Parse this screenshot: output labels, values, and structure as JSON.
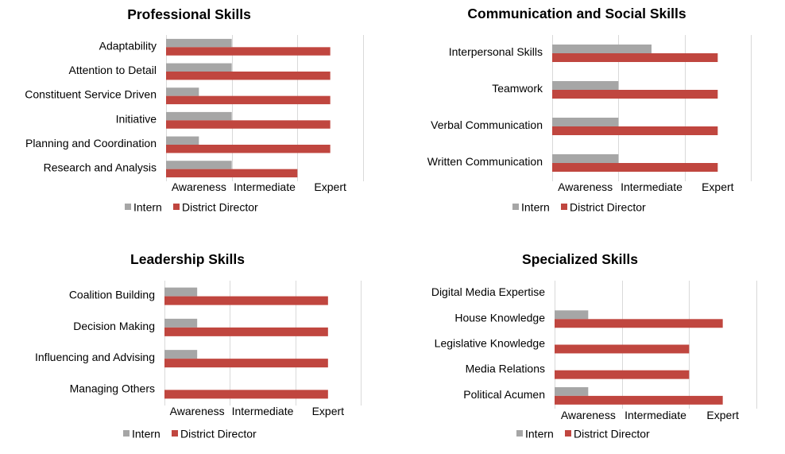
{
  "colors": {
    "intern": "#a6a6a6",
    "director": "#c0463f",
    "grid": "#d9d9d9"
  },
  "chart_data": [
    {
      "type": "bar",
      "orientation": "horizontal",
      "title": "Professional Skills",
      "categories": [
        "Adaptability",
        "Attention to Detail",
        "Constituent Service Driven",
        "Initiative",
        "Planning and Coordination",
        "Research and Analysis"
      ],
      "xticks": [
        "Awareness",
        "Intermediate",
        "Expert"
      ],
      "xlim": [
        0,
        3
      ],
      "grid": true,
      "legend": "bottom",
      "series": [
        {
          "name": "Intern",
          "color": "#a6a6a6",
          "values": [
            1,
            1,
            0.5,
            1,
            0.5,
            1
          ]
        },
        {
          "name": "District Director",
          "color": "#c0463f",
          "values": [
            2.5,
            2.5,
            2.5,
            2.5,
            2.5,
            2
          ]
        }
      ]
    },
    {
      "type": "bar",
      "orientation": "horizontal",
      "title": "Communication and Social Skills",
      "categories": [
        "Interpersonal Skills",
        "Teamwork",
        "Verbal Communication",
        "Written Communication"
      ],
      "xticks": [
        "Awareness",
        "Intermediate",
        "Expert"
      ],
      "xlim": [
        0,
        3
      ],
      "grid": true,
      "legend": "bottom",
      "series": [
        {
          "name": "Intern",
          "color": "#a6a6a6",
          "values": [
            1.5,
            1,
            1,
            1
          ]
        },
        {
          "name": "District Director",
          "color": "#c0463f",
          "values": [
            2.5,
            2.5,
            2.5,
            2.5
          ]
        }
      ]
    },
    {
      "type": "bar",
      "orientation": "horizontal",
      "title": "Leadership Skills",
      "categories": [
        "Coalition Building",
        "Decision Making",
        "Influencing and Advising",
        "Managing Others"
      ],
      "xticks": [
        "Awareness",
        "Intermediate",
        "Expert"
      ],
      "xlim": [
        0,
        3
      ],
      "grid": true,
      "legend": "bottom",
      "series": [
        {
          "name": "Intern",
          "color": "#a6a6a6",
          "values": [
            0.5,
            0.5,
            0.5,
            0
          ]
        },
        {
          "name": "District Director",
          "color": "#c0463f",
          "values": [
            2.5,
            2.5,
            2.5,
            2.5
          ]
        }
      ]
    },
    {
      "type": "bar",
      "orientation": "horizontal",
      "title": "Specialized Skills",
      "categories": [
        "Digital Media Expertise",
        "House Knowledge",
        "Legislative Knowledge",
        "Media Relations",
        "Political Acumen"
      ],
      "xticks": [
        "Awareness",
        "Intermediate",
        "Expert"
      ],
      "xlim": [
        0,
        3
      ],
      "grid": true,
      "legend": "bottom",
      "series": [
        {
          "name": "Intern",
          "color": "#a6a6a6",
          "values": [
            0,
            0.5,
            0,
            0,
            0.5
          ]
        },
        {
          "name": "District Director",
          "color": "#c0463f",
          "values": [
            0,
            2.5,
            2,
            2,
            2.5
          ]
        }
      ]
    }
  ]
}
